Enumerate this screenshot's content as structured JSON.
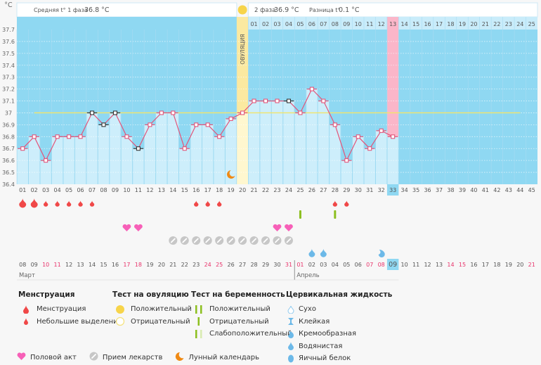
{
  "header": {
    "unit": "°C",
    "phase1_label": "Средняя t° 1 фаза",
    "phase1_value": "36.8 °C",
    "phase2_label": "2 фаза",
    "phase2_value": "36.9 °C",
    "diff_label": "Разница t°",
    "diff_value": "0.1 °C",
    "ovulation_label": "ОВУЛЯЦИЯ"
  },
  "colors": {
    "chart_bg": "#8fd8f2",
    "bar_fill": "#cdeefb",
    "ovulation": "#fbe9a0",
    "today": "#fbb6c9",
    "line": "#e2557a",
    "coverline": "#f3e46a",
    "menstruation": "#f04848",
    "heart": "#f760b8",
    "pill": "#c7c7c7",
    "test": "#8cbf1f",
    "fluid": "#6cb9e8",
    "moon": "#f08a14",
    "weekend": "#e8336b"
  },
  "chart_data": {
    "type": "line",
    "title": "",
    "ylabel": "°C",
    "ylim": [
      36.4,
      37.7
    ],
    "yticks": [
      36.4,
      36.5,
      36.6,
      36.7,
      36.8,
      36.9,
      37,
      37.1,
      37.2,
      37.3,
      37.4,
      37.5,
      37.6,
      37.7
    ],
    "coverline": 37.0,
    "coverline_range": [
      2,
      44
    ],
    "ovulation_day": 20,
    "current_day": 33,
    "cycle_days": [
      "01",
      "02",
      "03",
      "04",
      "05",
      "06",
      "07",
      "08",
      "09",
      "10",
      "11",
      "12",
      "13",
      "14",
      "15",
      "16",
      "17",
      "18",
      "19",
      "20",
      "21",
      "22",
      "23",
      "24",
      "25",
      "26",
      "27",
      "28",
      "29",
      "30",
      "31",
      "32",
      "33",
      "34",
      "35",
      "36",
      "37",
      "38",
      "39",
      "40",
      "41",
      "42",
      "43",
      "44",
      "45"
    ],
    "dpo_labels": [
      "01",
      "02",
      "03",
      "04",
      "05",
      "06",
      "07",
      "08",
      "09",
      "10",
      "11",
      "12",
      "13",
      "14",
      "15",
      "16",
      "17",
      "18",
      "19",
      "20",
      "21",
      "22",
      "23",
      "24",
      "25"
    ],
    "dpo_today_index": 12,
    "temperatures": [
      36.7,
      36.8,
      36.6,
      36.8,
      36.8,
      36.8,
      37.0,
      36.9,
      37.0,
      36.8,
      36.7,
      36.9,
      37.0,
      37.0,
      36.7,
      36.9,
      36.9,
      36.8,
      36.95,
      37.0,
      37.1,
      37.1,
      37.1,
      37.1,
      37.0,
      37.2,
      37.1,
      36.9,
      36.6,
      36.8,
      36.7,
      36.85,
      36.8
    ],
    "excluded_days": [
      7,
      8,
      9,
      11,
      24
    ],
    "calendar_dates": [
      {
        "d": "08",
        "w": false
      },
      {
        "d": "09",
        "w": false
      },
      {
        "d": "10",
        "w": true
      },
      {
        "d": "11",
        "w": true
      },
      {
        "d": "12",
        "w": false
      },
      {
        "d": "13",
        "w": false
      },
      {
        "d": "14",
        "w": false
      },
      {
        "d": "15",
        "w": false
      },
      {
        "d": "16",
        "w": false
      },
      {
        "d": "17",
        "w": true
      },
      {
        "d": "18",
        "w": true
      },
      {
        "d": "19",
        "w": false
      },
      {
        "d": "20",
        "w": false
      },
      {
        "d": "21",
        "w": false
      },
      {
        "d": "22",
        "w": false
      },
      {
        "d": "23",
        "w": false
      },
      {
        "d": "24",
        "w": true
      },
      {
        "d": "25",
        "w": true
      },
      {
        "d": "26",
        "w": false
      },
      {
        "d": "27",
        "w": false
      },
      {
        "d": "28",
        "w": false
      },
      {
        "d": "29",
        "w": false
      },
      {
        "d": "30",
        "w": false
      },
      {
        "d": "31",
        "w": true
      },
      {
        "d": "01",
        "w": true
      },
      {
        "d": "02",
        "w": false
      },
      {
        "d": "03",
        "w": false
      },
      {
        "d": "04",
        "w": false
      },
      {
        "d": "05",
        "w": false
      },
      {
        "d": "06",
        "w": false
      },
      {
        "d": "07",
        "w": true
      },
      {
        "d": "08",
        "w": true
      },
      {
        "d": "09",
        "w": false
      },
      {
        "d": "10",
        "w": false
      },
      {
        "d": "11",
        "w": false
      },
      {
        "d": "12",
        "w": false
      },
      {
        "d": "13",
        "w": false
      },
      {
        "d": "14",
        "w": true
      },
      {
        "d": "15",
        "w": true
      },
      {
        "d": "16",
        "w": false
      },
      {
        "d": "17",
        "w": false
      },
      {
        "d": "18",
        "w": false
      },
      {
        "d": "19",
        "w": false
      },
      {
        "d": "20",
        "w": false
      },
      {
        "d": "21",
        "w": true
      }
    ],
    "months": [
      {
        "label": "Март",
        "start_day": 1
      },
      {
        "label": "Апрель",
        "start_day": 25
      }
    ],
    "markers": {
      "menstruation_heavy": [
        1,
        2
      ],
      "menstruation_light": [
        3,
        4,
        5,
        6,
        7,
        16,
        17,
        18,
        28,
        29
      ],
      "pregnancy_test_negative": [
        25,
        28
      ],
      "intercourse": [
        10,
        11,
        23,
        24
      ],
      "medication": [
        14,
        15,
        16,
        17,
        18,
        19,
        20,
        21,
        22,
        23,
        24
      ],
      "fluid_watery": [
        26,
        27
      ],
      "fluid_creamy": [
        32
      ],
      "moon": [
        19
      ]
    }
  },
  "legend": {
    "menstruation": {
      "title": "Менструация",
      "items": [
        "Менструация",
        "Небольшие выделения"
      ]
    },
    "ovulation_test": {
      "title": "Тест на овуляцию",
      "items": [
        "Положительный",
        "Отрицательный"
      ]
    },
    "pregnancy_test": {
      "title": "Тест на беременность",
      "items": [
        "Положительный",
        "Отрицательный",
        "Слабоположительный"
      ]
    },
    "cervical_fluid": {
      "title": "Цервикальная жидкость",
      "items": [
        "Сухо",
        "Клейкая",
        "Кремообразная",
        "Водянистая",
        "Яичный белок"
      ]
    },
    "other": [
      "Половой акт",
      "Прием лекарств",
      "Лунный календарь"
    ]
  }
}
